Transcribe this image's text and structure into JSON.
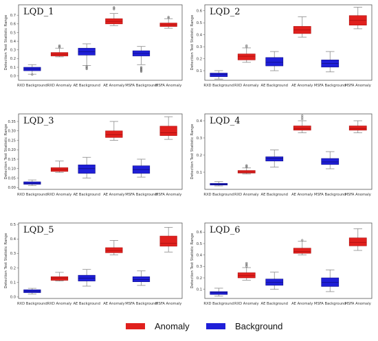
{
  "colors": {
    "anomaly": "#e0201d",
    "background": "#1f1fd8",
    "anomaly_edge": "#b01010",
    "background_edge": "#10108a"
  },
  "legend": {
    "anomaly_label": "Anomaly",
    "background_label": "Background"
  },
  "chart_data": [
    {
      "type": "box",
      "title": "LQD_1",
      "ylabel": "Detection Test Statistic Range",
      "categories": [
        "RXD Background",
        "RXD Anomaly",
        "AE Background",
        "AE Anomaly",
        "MSFA Background",
        "MSFA Anomaly"
      ],
      "ylim": [
        -0.05,
        0.82
      ],
      "yticks": [
        0.0,
        0.1,
        0.2,
        0.3,
        0.4,
        0.5,
        0.6,
        0.7
      ],
      "tick_decimals": 1,
      "boxes": [
        {
          "min": 0.02,
          "q1": 0.06,
          "median": 0.08,
          "q3": 0.1,
          "max": 0.13,
          "outliers": [
            0.015
          ]
        },
        {
          "min": 0.22,
          "q1": 0.23,
          "median": 0.25,
          "q3": 0.27,
          "max": 0.32,
          "outliers": [
            0.33,
            0.34,
            0.35
          ]
        },
        {
          "min": 0.12,
          "q1": 0.24,
          "median": 0.28,
          "q3": 0.32,
          "max": 0.37,
          "outliers": [
            0.08,
            0.09,
            0.1,
            0.11
          ]
        },
        {
          "min": 0.58,
          "q1": 0.6,
          "median": 0.63,
          "q3": 0.66,
          "max": 0.72,
          "outliers": [
            0.77,
            0.78,
            0.79
          ]
        },
        {
          "min": 0.13,
          "q1": 0.23,
          "median": 0.26,
          "q3": 0.29,
          "max": 0.34,
          "outliers": [
            0.05,
            0.06,
            0.07,
            0.08,
            0.09,
            0.1
          ]
        },
        {
          "min": 0.55,
          "q1": 0.57,
          "median": 0.59,
          "q3": 0.61,
          "max": 0.66,
          "outliers": [
            0.67,
            0.68
          ]
        }
      ]
    },
    {
      "type": "box",
      "title": "LQD_2",
      "ylabel": "Detection Test Statistic Range",
      "categories": [
        "RXD Background",
        "RXD Anomaly",
        "AE Background",
        "AE Anomaly",
        "MSFA Background",
        "MSFA Anomaly"
      ],
      "ylim": [
        0.02,
        0.65
      ],
      "yticks": [
        0.1,
        0.2,
        0.3,
        0.4,
        0.5,
        0.6
      ],
      "tick_decimals": 1,
      "boxes": [
        {
          "min": 0.03,
          "q1": 0.05,
          "median": 0.07,
          "q3": 0.08,
          "max": 0.1,
          "outliers": []
        },
        {
          "min": 0.17,
          "q1": 0.19,
          "median": 0.22,
          "q3": 0.24,
          "max": 0.29,
          "outliers": [
            0.3,
            0.31
          ]
        },
        {
          "min": 0.1,
          "q1": 0.14,
          "median": 0.17,
          "q3": 0.21,
          "max": 0.26,
          "outliers": []
        },
        {
          "min": 0.38,
          "q1": 0.41,
          "median": 0.44,
          "q3": 0.47,
          "max": 0.55,
          "outliers": []
        },
        {
          "min": 0.09,
          "q1": 0.13,
          "median": 0.16,
          "q3": 0.19,
          "max": 0.26,
          "outliers": []
        },
        {
          "min": 0.45,
          "q1": 0.48,
          "median": 0.52,
          "q3": 0.56,
          "max": 0.63,
          "outliers": []
        }
      ]
    },
    {
      "type": "box",
      "title": "LQD_3",
      "ylabel": "Detection Test Statistic Range",
      "categories": [
        "RXD Background",
        "RXD Anomaly",
        "AE Background",
        "AE Anomaly",
        "MSFA Background",
        "MSFA Anomaly"
      ],
      "ylim": [
        -0.01,
        0.39
      ],
      "yticks": [
        0.0,
        0.05,
        0.1,
        0.15,
        0.2,
        0.25,
        0.3,
        0.35
      ],
      "tick_decimals": 2,
      "boxes": [
        {
          "min": 0.01,
          "q1": 0.017,
          "median": 0.022,
          "q3": 0.03,
          "max": 0.04,
          "outliers": []
        },
        {
          "min": 0.08,
          "q1": 0.085,
          "median": 0.095,
          "q3": 0.105,
          "max": 0.14,
          "outliers": []
        },
        {
          "min": 0.05,
          "q1": 0.075,
          "median": 0.1,
          "q3": 0.12,
          "max": 0.16,
          "outliers": []
        },
        {
          "min": 0.25,
          "q1": 0.265,
          "median": 0.28,
          "q3": 0.3,
          "max": 0.35,
          "outliers": []
        },
        {
          "min": 0.055,
          "q1": 0.075,
          "median": 0.095,
          "q3": 0.115,
          "max": 0.15,
          "outliers": []
        },
        {
          "min": 0.255,
          "q1": 0.275,
          "median": 0.29,
          "q3": 0.325,
          "max": 0.375,
          "outliers": []
        }
      ]
    },
    {
      "type": "box",
      "title": "LQD_4",
      "ylabel": "Detection Test Statistic Range",
      "categories": [
        "RXD Background",
        "RXD Anomaly",
        "AE Background",
        "AE Anomaly",
        "MSFA Background",
        "MSFA Anomaly"
      ],
      "ylim": [
        0.0,
        0.44
      ],
      "yticks": [
        0.1,
        0.2,
        0.3,
        0.4
      ],
      "tick_decimals": 1,
      "boxes": [
        {
          "min": 0.02,
          "q1": 0.025,
          "median": 0.03,
          "q3": 0.035,
          "max": 0.045,
          "outliers": []
        },
        {
          "min": 0.09,
          "q1": 0.095,
          "median": 0.1,
          "q3": 0.11,
          "max": 0.125,
          "outliers": [
            0.13,
            0.135,
            0.14
          ]
        },
        {
          "min": 0.13,
          "q1": 0.165,
          "median": 0.18,
          "q3": 0.19,
          "max": 0.23,
          "outliers": []
        },
        {
          "min": 0.33,
          "q1": 0.345,
          "median": 0.355,
          "q3": 0.37,
          "max": 0.4,
          "outliers": [
            0.41,
            0.42,
            0.43
          ]
        },
        {
          "min": 0.12,
          "q1": 0.145,
          "median": 0.16,
          "q3": 0.18,
          "max": 0.22,
          "outliers": []
        },
        {
          "min": 0.33,
          "q1": 0.345,
          "median": 0.355,
          "q3": 0.37,
          "max": 0.4,
          "outliers": []
        }
      ]
    },
    {
      "type": "box",
      "title": "LQD_5",
      "ylabel": "Detection Test Statistic Range",
      "categories": [
        "RXD Background",
        "RXD Anomaly",
        "AE Background",
        "AE Anomaly",
        "MSFA Background",
        "MSFA Anomaly"
      ],
      "ylim": [
        -0.01,
        0.51
      ],
      "yticks": [
        0.0,
        0.1,
        0.2,
        0.3,
        0.4,
        0.5
      ],
      "tick_decimals": 1,
      "boxes": [
        {
          "min": 0.02,
          "q1": 0.03,
          "median": 0.04,
          "q3": 0.05,
          "max": 0.06,
          "outliers": []
        },
        {
          "min": 0.11,
          "q1": 0.115,
          "median": 0.13,
          "q3": 0.14,
          "max": 0.17,
          "outliers": []
        },
        {
          "min": 0.075,
          "q1": 0.11,
          "median": 0.13,
          "q3": 0.15,
          "max": 0.19,
          "outliers": []
        },
        {
          "min": 0.29,
          "q1": 0.305,
          "median": 0.32,
          "q3": 0.34,
          "max": 0.39,
          "outliers": []
        },
        {
          "min": 0.08,
          "q1": 0.105,
          "median": 0.12,
          "q3": 0.14,
          "max": 0.18,
          "outliers": []
        },
        {
          "min": 0.31,
          "q1": 0.35,
          "median": 0.37,
          "q3": 0.42,
          "max": 0.48,
          "outliers": []
        }
      ]
    },
    {
      "type": "box",
      "title": "LQD_6",
      "ylabel": "Detection Test Statistic Range",
      "categories": [
        "RXD Background",
        "RXD Anomaly",
        "AE Background",
        "AE Anomaly",
        "MSFA Background",
        "MSFA Anomaly"
      ],
      "ylim": [
        0.02,
        0.68
      ],
      "yticks": [
        0.1,
        0.2,
        0.3,
        0.4,
        0.5,
        0.6
      ],
      "tick_decimals": 1,
      "boxes": [
        {
          "min": 0.04,
          "q1": 0.055,
          "median": 0.07,
          "q3": 0.08,
          "max": 0.11,
          "outliers": []
        },
        {
          "min": 0.18,
          "q1": 0.2,
          "median": 0.22,
          "q3": 0.245,
          "max": 0.29,
          "outliers": [
            0.3,
            0.31,
            0.32,
            0.33
          ]
        },
        {
          "min": 0.1,
          "q1": 0.135,
          "median": 0.16,
          "q3": 0.19,
          "max": 0.25,
          "outliers": []
        },
        {
          "min": 0.4,
          "q1": 0.415,
          "median": 0.43,
          "q3": 0.46,
          "max": 0.52,
          "outliers": [
            0.53
          ]
        },
        {
          "min": 0.08,
          "q1": 0.125,
          "median": 0.16,
          "q3": 0.2,
          "max": 0.27,
          "outliers": []
        },
        {
          "min": 0.44,
          "q1": 0.48,
          "median": 0.51,
          "q3": 0.55,
          "max": 0.63,
          "outliers": []
        }
      ]
    }
  ]
}
